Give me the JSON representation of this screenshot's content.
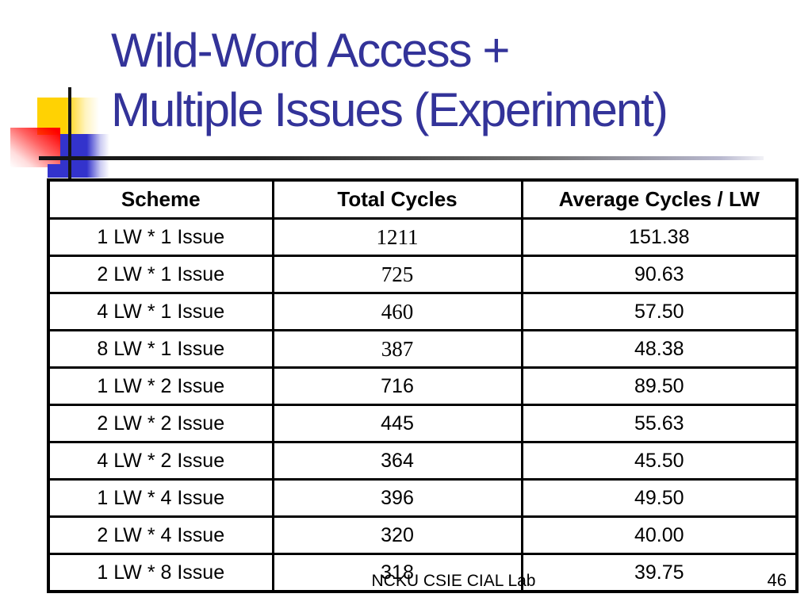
{
  "slide": {
    "title": {
      "line1": "Wild-Word Access +",
      "line2": "Multiple Issues (Experiment)"
    },
    "footer": {
      "lab_name": "NCKU CSIE CIAL Lab",
      "page_number": "46"
    }
  },
  "colors": {
    "title_text": "#333399",
    "accent_yellow": "#FFD203",
    "accent_red": "#FF0000",
    "accent_blue": "#3333CC",
    "table_border": "#000000",
    "divider_gradient_start": "#141414",
    "divider_gradient_end": "#C8C8DC"
  },
  "table": {
    "headers": [
      "Scheme",
      "Total Cycles",
      "Average Cycles / LW"
    ],
    "rows": [
      {
        "scheme": "1 LW * 1 Issue",
        "total_cycles": "1211",
        "avg_cycles_per_lw": "151.38",
        "total_serif": true
      },
      {
        "scheme": "2 LW * 1 Issue",
        "total_cycles": "725",
        "avg_cycles_per_lw": "90.63",
        "total_serif": true
      },
      {
        "scheme": "4 LW * 1 Issue",
        "total_cycles": "460",
        "avg_cycles_per_lw": "57.50",
        "total_serif": true
      },
      {
        "scheme": "8 LW * 1 Issue",
        "total_cycles": "387",
        "avg_cycles_per_lw": "48.38",
        "total_serif": true
      },
      {
        "scheme": "1 LW * 2 Issue",
        "total_cycles": "716",
        "avg_cycles_per_lw": "89.50",
        "total_serif": false
      },
      {
        "scheme": "2 LW * 2 Issue",
        "total_cycles": "445",
        "avg_cycles_per_lw": "55.63",
        "total_serif": false
      },
      {
        "scheme": "4 LW * 2 Issue",
        "total_cycles": "364",
        "avg_cycles_per_lw": "45.50",
        "total_serif": false
      },
      {
        "scheme": "1 LW * 4 Issue",
        "total_cycles": "396",
        "avg_cycles_per_lw": "49.50",
        "total_serif": false
      },
      {
        "scheme": "2 LW * 4 Issue",
        "total_cycles": "320",
        "avg_cycles_per_lw": "40.00",
        "total_serif": false
      },
      {
        "scheme": "1 LW * 8 Issue",
        "total_cycles": "318",
        "avg_cycles_per_lw": "39.75",
        "total_serif": false
      }
    ]
  }
}
